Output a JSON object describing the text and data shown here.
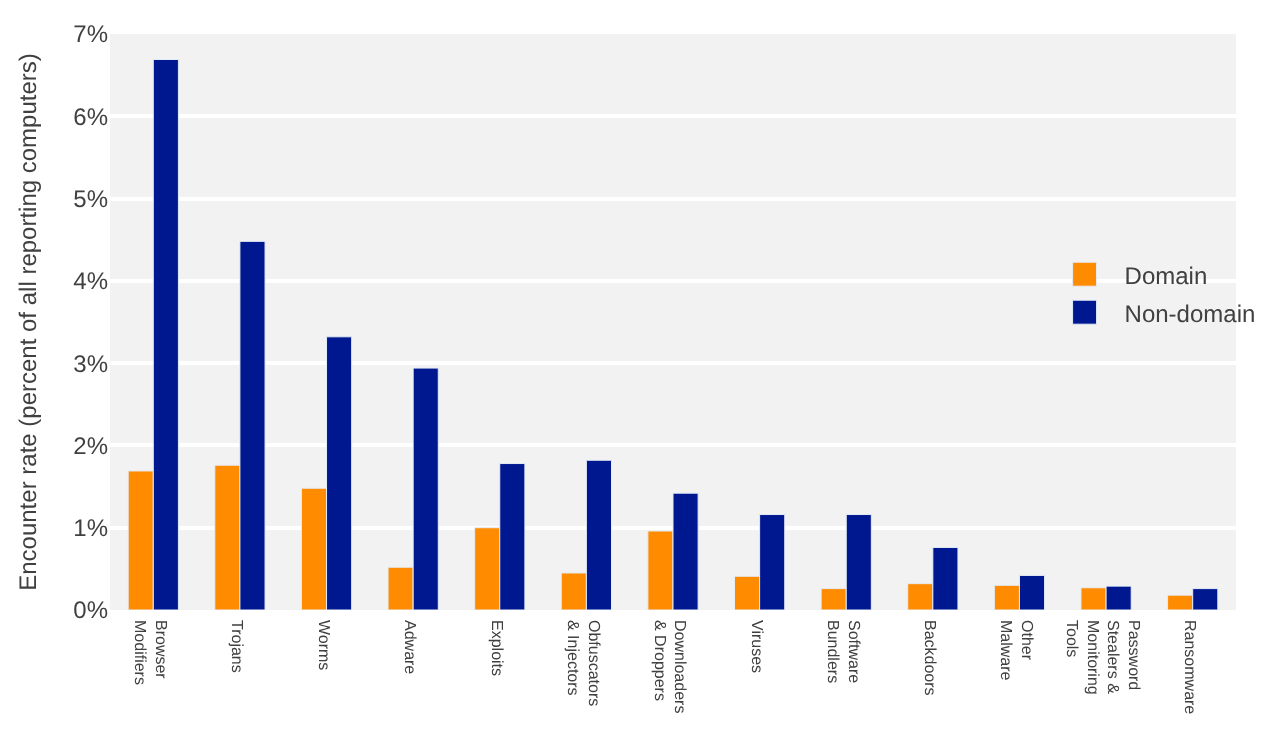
{
  "chart_data": {
    "type": "bar",
    "ylabel": "Encounter rate (percent of all reporting computers)",
    "categories": [
      "Browser\nModifiers",
      "Trojans",
      "Worms",
      "Adware",
      "Exploits",
      "Obfuscators\n& Injectors",
      "Downloaders\n& Droppers",
      "Viruses",
      "Software\nBundlers",
      "Backdoors",
      "Other\nMalware",
      "Password\nStealers &\nMonitoring\nTools",
      "Ransomware"
    ],
    "series": [
      {
        "name": "Domain",
        "color": "#ff8c00",
        "values": [
          1.69,
          1.76,
          1.48,
          0.52,
          1.0,
          0.45,
          0.96,
          0.41,
          0.26,
          0.32,
          0.3,
          0.27,
          0.18
        ]
      },
      {
        "name": "Non-domain",
        "color": "#00188f",
        "values": [
          6.69,
          4.48,
          3.32,
          2.94,
          1.78,
          1.82,
          1.42,
          1.16,
          1.16,
          0.76,
          0.42,
          0.29,
          0.26
        ]
      }
    ],
    "ylim": [
      0,
      7
    ],
    "yticks": [
      {
        "value": 0,
        "label": "0%"
      },
      {
        "value": 1,
        "label": "1%"
      },
      {
        "value": 2,
        "label": "2%"
      },
      {
        "value": 3,
        "label": "3%"
      },
      {
        "value": 4,
        "label": "4%"
      },
      {
        "value": 5,
        "label": "5%"
      },
      {
        "value": 6,
        "label": "6%"
      },
      {
        "value": 7,
        "label": "7%"
      }
    ],
    "grid": "y",
    "legend": "right"
  }
}
